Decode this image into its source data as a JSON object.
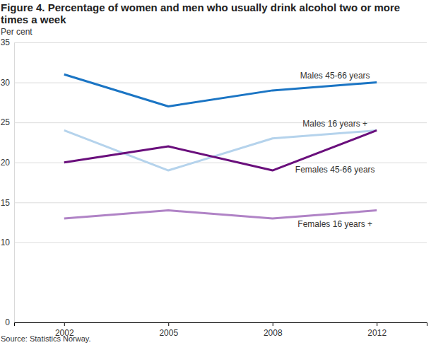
{
  "chart_data": {
    "type": "line",
    "title": "Figure 4. Percentage of women and men who usually drink alcohol two or more times a week",
    "y_label": "Per cent",
    "source": "Source: Statistics Norway.",
    "categories": [
      "2002",
      "2005",
      "2008",
      "2012"
    ],
    "series": [
      {
        "name": "Males 45-66 years",
        "color": "#1b75c4",
        "values": [
          31,
          27,
          29,
          30
        ]
      },
      {
        "name": "Males 16 years +",
        "color": "#b5d3ec",
        "values": [
          24,
          19,
          23,
          24
        ]
      },
      {
        "name": "Females 45-66 years",
        "color": "#6a0f7c",
        "values": [
          20,
          22,
          19,
          24
        ]
      },
      {
        "name": "Females 16 years +",
        "color": "#b083c6",
        "values": [
          13,
          14,
          13,
          14
        ]
      }
    ],
    "ylim": [
      0,
      35
    ],
    "yticks": [
      0,
      10,
      15,
      20,
      25,
      30,
      35
    ],
    "grid": true
  }
}
